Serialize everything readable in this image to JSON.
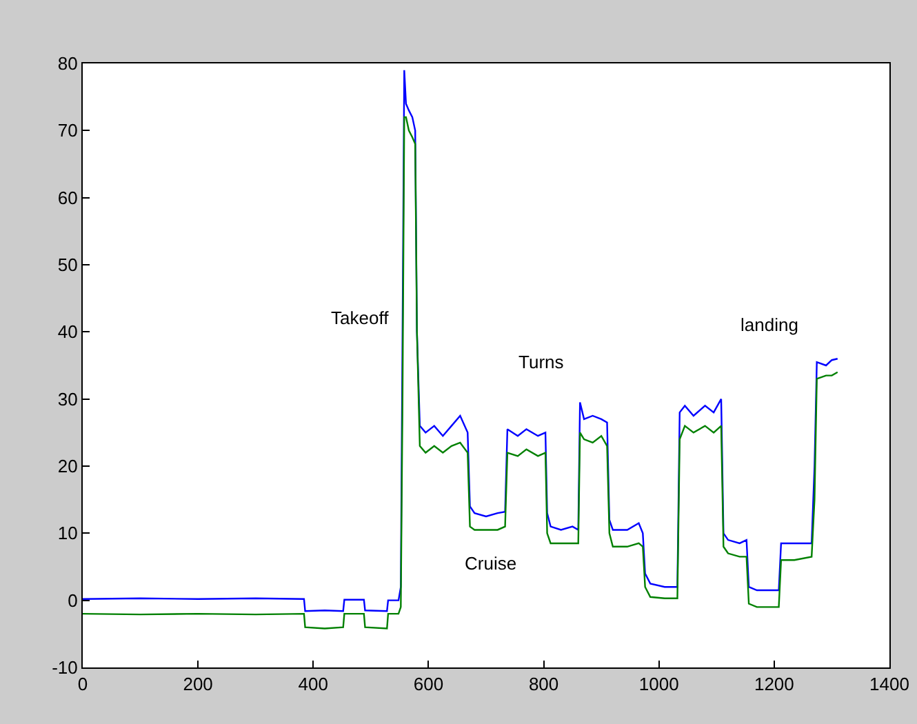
{
  "chart_data": {
    "type": "line",
    "xlim": [
      0,
      1400
    ],
    "ylim": [
      -10,
      80
    ],
    "xticks": [
      0,
      200,
      400,
      600,
      800,
      1000,
      1200,
      1400
    ],
    "yticks": [
      -10,
      0,
      10,
      20,
      30,
      40,
      50,
      60,
      70,
      80
    ],
    "grid": false,
    "marker": "none",
    "line_style": "solid",
    "series": [
      {
        "color": "#0000ff",
        "x": [
          0,
          100,
          200,
          300,
          384,
          386,
          420,
          452,
          454,
          488,
          490,
          528,
          530,
          548,
          552,
          555,
          558,
          561,
          566,
          572,
          577,
          580,
          585,
          595,
          610,
          625,
          640,
          655,
          668,
          672,
          680,
          700,
          720,
          733,
          737,
          755,
          770,
          790,
          803,
          806,
          812,
          830,
          850,
          860,
          863,
          870,
          885,
          900,
          910,
          914,
          920,
          945,
          965,
          972,
          976,
          985,
          1010,
          1032,
          1036,
          1045,
          1060,
          1080,
          1095,
          1108,
          1112,
          1120,
          1140,
          1152,
          1156,
          1170,
          1190,
          1208,
          1212,
          1235,
          1265,
          1270,
          1274,
          1290,
          1300,
          1310
        ],
        "values": [
          0.2,
          0.3,
          0.2,
          0.3,
          0.2,
          -1.6,
          -1.5,
          -1.6,
          0.1,
          0.1,
          -1.5,
          -1.6,
          0,
          0,
          2,
          40,
          79,
          74,
          73,
          72,
          70,
          40,
          26,
          25,
          26,
          24.5,
          26,
          27.5,
          25,
          14,
          13,
          12.5,
          13,
          13.2,
          25.5,
          24.5,
          25.5,
          24.5,
          25,
          13,
          11,
          10.5,
          11,
          10.5,
          29.5,
          27,
          27.5,
          27,
          26.5,
          12,
          10.5,
          10.5,
          11.5,
          10,
          4,
          2.5,
          2,
          2,
          28,
          29,
          27.5,
          29,
          28,
          30,
          10,
          9,
          8.5,
          9,
          2,
          1.5,
          1.5,
          1.5,
          8.5,
          8.5,
          8.5,
          20,
          35.5,
          35,
          35.8,
          36
        ]
      },
      {
        "color": "#008000",
        "x": [
          0,
          100,
          200,
          300,
          384,
          386,
          420,
          452,
          454,
          488,
          490,
          528,
          530,
          548,
          552,
          555,
          558,
          561,
          566,
          572,
          577,
          580,
          585,
          595,
          610,
          625,
          640,
          655,
          668,
          672,
          680,
          700,
          720,
          733,
          737,
          755,
          770,
          790,
          803,
          806,
          812,
          830,
          850,
          860,
          863,
          870,
          885,
          900,
          910,
          914,
          920,
          945,
          965,
          972,
          976,
          985,
          1010,
          1032,
          1036,
          1045,
          1060,
          1080,
          1095,
          1108,
          1112,
          1120,
          1140,
          1152,
          1156,
          1170,
          1190,
          1208,
          1212,
          1235,
          1265,
          1270,
          1274,
          1290,
          1300,
          1310
        ],
        "values": [
          -2,
          -2.1,
          -2,
          -2.1,
          -2,
          -4,
          -4.2,
          -4,
          -2,
          -2,
          -4,
          -4.2,
          -2,
          -2,
          -1,
          30,
          72,
          72,
          70,
          69,
          68,
          40,
          23,
          22,
          23,
          22,
          23,
          23.5,
          22,
          11,
          10.5,
          10.5,
          10.5,
          11,
          22,
          21.5,
          22.5,
          21.5,
          22,
          10,
          8.5,
          8.5,
          8.5,
          8.5,
          25,
          24,
          23.5,
          24.5,
          23,
          10,
          8,
          8,
          8.5,
          8,
          2,
          0.5,
          0.3,
          0.3,
          24,
          26,
          25,
          26,
          25,
          26,
          8,
          7,
          6.5,
          6.5,
          -0.5,
          -1,
          -1,
          -1,
          6,
          6,
          6.5,
          15,
          33,
          33.5,
          33.5,
          34
        ]
      }
    ],
    "annotations": [
      "Takeoff",
      "Turns",
      "Cruise",
      "landing"
    ]
  }
}
